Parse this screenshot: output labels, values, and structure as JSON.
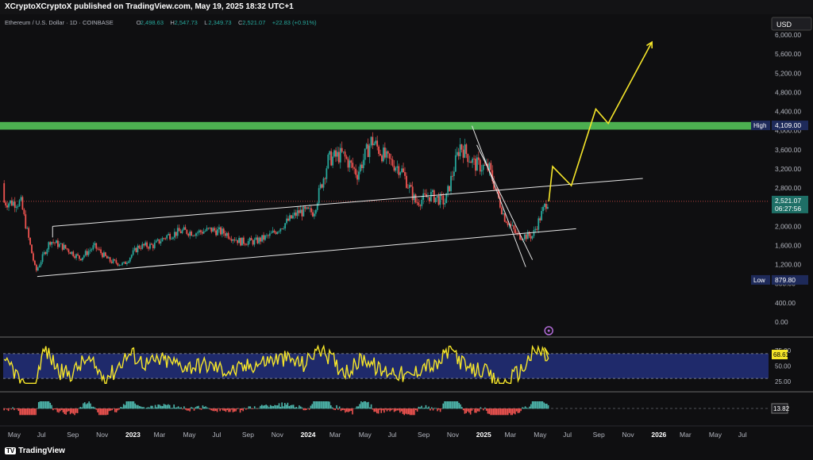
{
  "publish_line": "XCryptoXCryptoX published on TradingView.com, May 19, 2025 18:32 UTC+1",
  "symbol_line": {
    "name": "Ethereum / U.S. Dollar · 1D · COINBASE",
    "open_label": "O",
    "open": "2,498.63",
    "high_label": "H",
    "high": "2,547.73",
    "low_label": "L",
    "low": "2,349.73",
    "close_label": "C",
    "close": "2,521.07",
    "change": "+22.83 (+0.91%)"
  },
  "currency": "USD",
  "footer_brand": "TradingView",
  "colors": {
    "background": "#0f0f11",
    "candle_up": "#26a69a",
    "candle_down": "#ef5350",
    "resistance_band": "#4caf50",
    "projection": "#f5e52a",
    "rsi_line": "#f5e52a",
    "rsi_band": "#1f2a6b",
    "channel": "#e6e6e6"
  },
  "chart_data": [
    {
      "type": "candlestick",
      "x_axis_labels": [
        "May",
        "Jul",
        "Sep",
        "Nov",
        "2023",
        "Mar",
        "May",
        "Jul",
        "Sep",
        "Nov",
        "2024",
        "Mar",
        "May",
        "Jul",
        "Sep",
        "Nov",
        "2025",
        "Mar",
        "May",
        "Jul",
        "Sep",
        "Nov",
        "2026",
        "Mar",
        "May",
        "Jul"
      ],
      "y_axis_ticks": [
        "6,000.00",
        "5,600.00",
        "5,200.00",
        "4,800.00",
        "4,400.00",
        "4,000.00",
        "3,600.00",
        "3,200.00",
        "2,800.00",
        "2,400.00",
        "2,000.00",
        "1,600.00",
        "1,200.00",
        "800.00",
        "400.00",
        "0.00"
      ],
      "ylim": [
        -100,
        6200
      ],
      "price_path_monthly": {
        "x": [
          "2022-05",
          "2022-06",
          "2022-07",
          "2022-08",
          "2022-09",
          "2022-10",
          "2022-11",
          "2022-12",
          "2023-01",
          "2023-02",
          "2023-03",
          "2023-04",
          "2023-05",
          "2023-06",
          "2023-07",
          "2023-08",
          "2023-09",
          "2023-10",
          "2023-11",
          "2023-12",
          "2024-01",
          "2024-02",
          "2024-03",
          "2024-04",
          "2024-05",
          "2024-06",
          "2024-07",
          "2024-08",
          "2024-09",
          "2024-10",
          "2024-11",
          "2024-12",
          "2025-01",
          "2025-02",
          "2025-03",
          "2025-04",
          "2025-05"
        ],
        "close": [
          2500,
          1050,
          1700,
          1550,
          1330,
          1580,
          1280,
          1200,
          1580,
          1600,
          1800,
          1900,
          1870,
          1930,
          1860,
          1680,
          1680,
          1800,
          2050,
          2300,
          2300,
          3400,
          3500,
          3100,
          3800,
          3400,
          3200,
          2500,
          2650,
          2500,
          3700,
          3300,
          3200,
          2200,
          1800,
          1800,
          2521
        ]
      },
      "channel_lines": [
        {
          "name": "",
          "points": [
            [
              "2022-06-18",
              950
            ],
            [
              "2025-07-15",
              1950
            ]
          ]
        },
        {
          "name": "",
          "points": [
            [
              "2022-07-20",
              2000
            ],
            [
              "2025-12-01",
              3000
            ]
          ]
        }
      ],
      "falling_channel": [
        {
          "points": [
            [
              "2024-12-10",
              4100
            ],
            [
              "2025-04-01",
              1150
            ]
          ]
        },
        {
          "points": [
            [
              "2024-12-20",
              3700
            ],
            [
              "2025-04-15",
              1300
            ]
          ]
        }
      ],
      "resistance_band": {
        "y_low": 4020,
        "y_high": 4180,
        "label": "High",
        "value": "4,109.00"
      },
      "low_marker": {
        "label": "Low",
        "value": "879.80"
      },
      "last_price": {
        "value": "2,521.07",
        "countdown": "06:27:56"
      },
      "projection_path": [
        [
          "2025-05-19",
          2521
        ],
        [
          "2025-05-27",
          3250
        ],
        [
          "2025-07-05",
          2850
        ],
        [
          "2025-08-25",
          4450
        ],
        [
          "2025-09-20",
          4150
        ],
        [
          "2025-12-20",
          5850
        ]
      ]
    },
    {
      "type": "line",
      "indicator": "RSI",
      "y_axis_ticks": [
        "75.00",
        "50.00",
        "25.00"
      ],
      "band": [
        30,
        70
      ],
      "current_value": "68.61"
    },
    {
      "type": "bar",
      "indicator": "histogram",
      "current_value": "13.82"
    }
  ]
}
